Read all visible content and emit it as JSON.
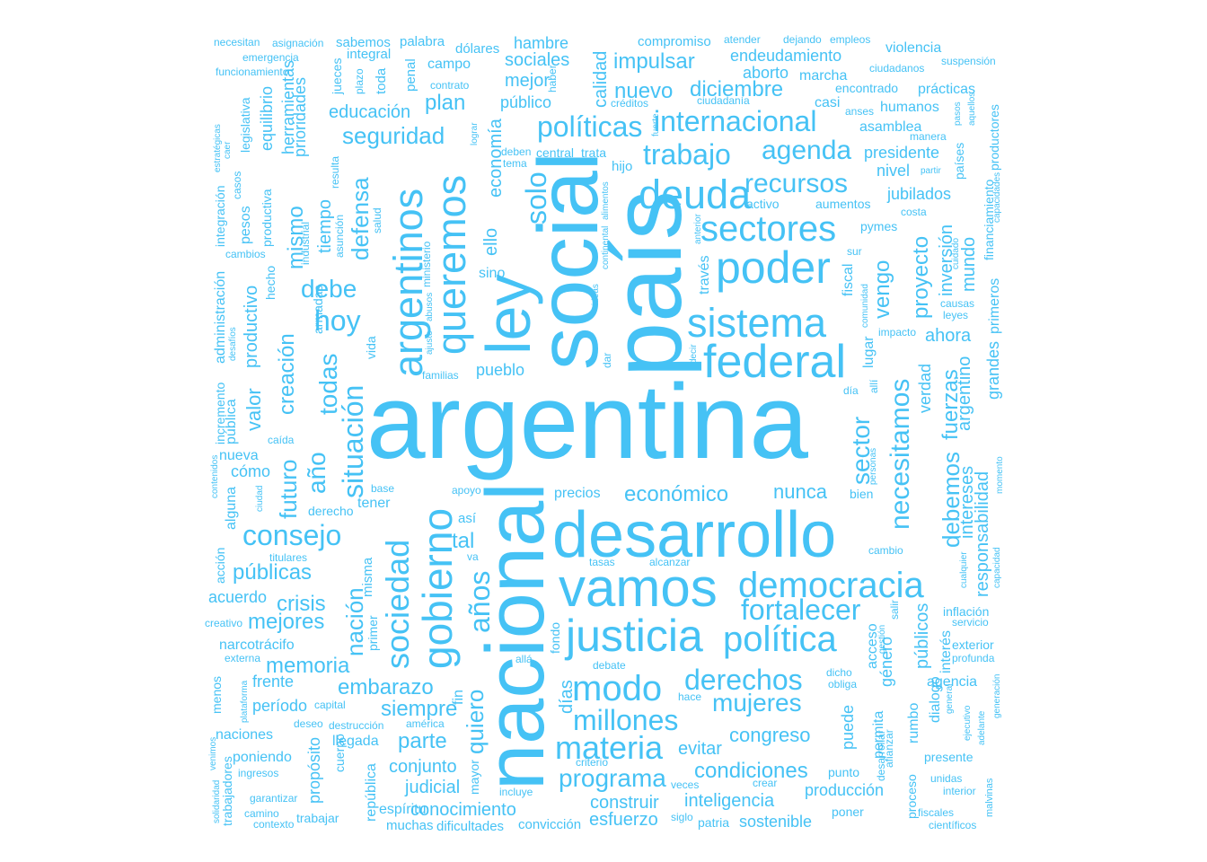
{
  "color": "#45C2F5",
  "words": [
    "argentina",
    "país",
    "social",
    "nacional",
    "desarrollo",
    "ley",
    "vamos",
    "justicia",
    "federal",
    "poder",
    "sistema",
    "queremos",
    "argentinos",
    "gobierno",
    "democracia",
    "política",
    "deuda",
    "sectores",
    "modo",
    "materia",
    "sociedad",
    "situación",
    "años",
    "hoy",
    "políticas",
    "trabajo",
    "millones",
    "derechos",
    "fortalecer",
    "solo",
    "consejo",
    "internacional",
    "necesitamos",
    "agenda",
    "recursos",
    "mujeres",
    "seguridad",
    "nuevo",
    "impulsar",
    "debe",
    "todas",
    "año",
    "defensa",
    "programa",
    "condiciones",
    "sector",
    "proyecto",
    "debemos",
    "conocimiento",
    "quiero",
    "siempre",
    "parte",
    "crisis",
    "nación",
    "memoria",
    "embarazo",
    "públicas",
    "mejores",
    "diciembre",
    "endeudamiento",
    "economía",
    "calidad",
    "plan",
    "mejor",
    "sociales",
    "hambre",
    "educación",
    "creación",
    "futuro",
    "productivo",
    "valor",
    "mismo",
    "tiempo",
    "herramientas",
    "equilibrio",
    "prioridades",
    "económico",
    "nunca",
    "tal",
    "congreso",
    "evitar",
    "inteligencia",
    "construir",
    "esfuerzo",
    "judicial",
    "conjunto",
    "producción",
    "sostenible",
    "interés",
    "públicos",
    "responsabilidad",
    "intereses",
    "fuerzas",
    "argentino",
    "verdad",
    "ahora",
    "inversión",
    "mundo",
    "jubilados",
    "vengo",
    "nivel",
    "presidente",
    "grandes",
    "primeros",
    "financiamiento",
    "productores",
    "violencia",
    "compromiso",
    "palabra",
    "dólares",
    "campo",
    "público",
    "aborto",
    "marcha",
    "casi",
    "humanos",
    "asamblea",
    "prácticas",
    "ciudadanos",
    "suspensión",
    "acuerdo",
    "narcotrácifo",
    "frente",
    "período",
    "naciones",
    "poniendo",
    "propósito",
    "república",
    "espíritu",
    "muchas",
    "dificultades",
    "convicción",
    "precios",
    "pueblo",
    "ello",
    "sino",
    "días",
    "fin",
    "dialogo",
    "rumbo",
    "permita",
    "puede",
    "género",
    "acceso",
    "agencia",
    "exterior",
    "inflación",
    "presente",
    "proceso",
    "poner",
    "punto",
    "patria",
    "siglo",
    "veces",
    "llegada",
    "trabajar",
    "camino",
    "garantizar",
    "cómo",
    "nueva",
    "alguna",
    "pública",
    "incremento",
    "administración",
    "pesos",
    "integración",
    "productiva",
    "caer",
    "estratégicas",
    "legislativa",
    "funcionamiento",
    "emergencia",
    "necesitan",
    "asignación",
    "sabemos",
    "integral",
    "jueces",
    "plazo",
    "toda",
    "penal",
    "haber",
    "contrato",
    "lograr",
    "créditos",
    "ciudadanía",
    "atender",
    "dejando",
    "empleos",
    "fiscal",
    "lugar",
    "vida",
    "armadas",
    "hecho",
    "cambios",
    "industrial",
    "asunción",
    "salud",
    "ministerio",
    "ajuste",
    "abusos",
    "familias",
    "dar",
    "ideas",
    "continental",
    "alimentos",
    "hijo",
    "tener",
    "así",
    "va",
    "tasas",
    "alcanzar",
    "apoyo",
    "base",
    "derecho",
    "titulares",
    "ciudad",
    "acción",
    "creativo",
    "externa",
    "menos",
    "plataforma",
    "primer",
    "misma",
    "capital",
    "deseo",
    "destrucción",
    "américa",
    "cuerpo",
    "mayor",
    "incluye",
    "criterio",
    "crear",
    "dicho",
    "obliga",
    "hace",
    "debate",
    "fondo",
    "allá",
    "trata",
    "central",
    "deben",
    "tema",
    "activo",
    "aumentos",
    "pymes",
    "costa",
    "sur",
    "comunidad",
    "impacto",
    "anterior",
    "través",
    "decir",
    "día",
    "allí",
    "personas",
    "bien",
    "cambio",
    "salir",
    "gestión",
    "afianzar",
    "desarrollar",
    "unidas",
    "interior",
    "fiscales",
    "científicos",
    "malvinas",
    "generación",
    "adelante",
    "ejecutivo",
    "general",
    "cualquier",
    "capacidad",
    "servicio",
    "profunda",
    "momento",
    "causas",
    "leyes",
    "cuidado",
    "capacidades",
    "partir",
    "países",
    "pasos",
    "aquellos",
    "manera",
    "anses",
    "encontrado",
    "resulta",
    "casos",
    "contenidos",
    "caída",
    "desafíos",
    "solidaridad",
    "venimos",
    "trabajadores",
    "ingresos",
    "contexto",
    "fuerte",
    "mismo2"
  ]
}
